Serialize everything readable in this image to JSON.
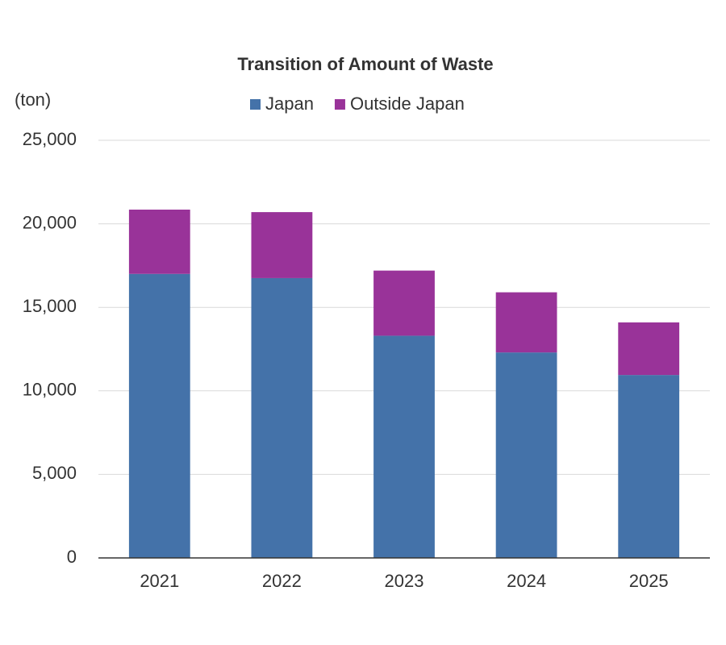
{
  "chart_data": {
    "type": "stacked_bar",
    "title": "Transition of Amount of Waste",
    "y_label": "(ton)",
    "categories": [
      "2021",
      "2022",
      "2023",
      "2024",
      "2025"
    ],
    "series": [
      {
        "name": "Japan",
        "color": "#4472a9",
        "values": [
          17000,
          16750,
          13300,
          12300,
          10950
        ]
      },
      {
        "name": "Outside Japan",
        "color": "#993399",
        "values": [
          3850,
          3950,
          3900,
          3600,
          3150
        ]
      }
    ],
    "ylim": [
      0,
      25000
    ],
    "yticks": [
      0,
      {
        "value": 5000,
        "label": "5,000"
      },
      {
        "value": 10000,
        "label": "10,000"
      },
      {
        "value": 15000,
        "label": "15,000"
      },
      {
        "value": 20000,
        "label": "20,000"
      },
      {
        "value": 25000,
        "label": "25,000"
      }
    ],
    "grid": true,
    "legend": "top"
  }
}
